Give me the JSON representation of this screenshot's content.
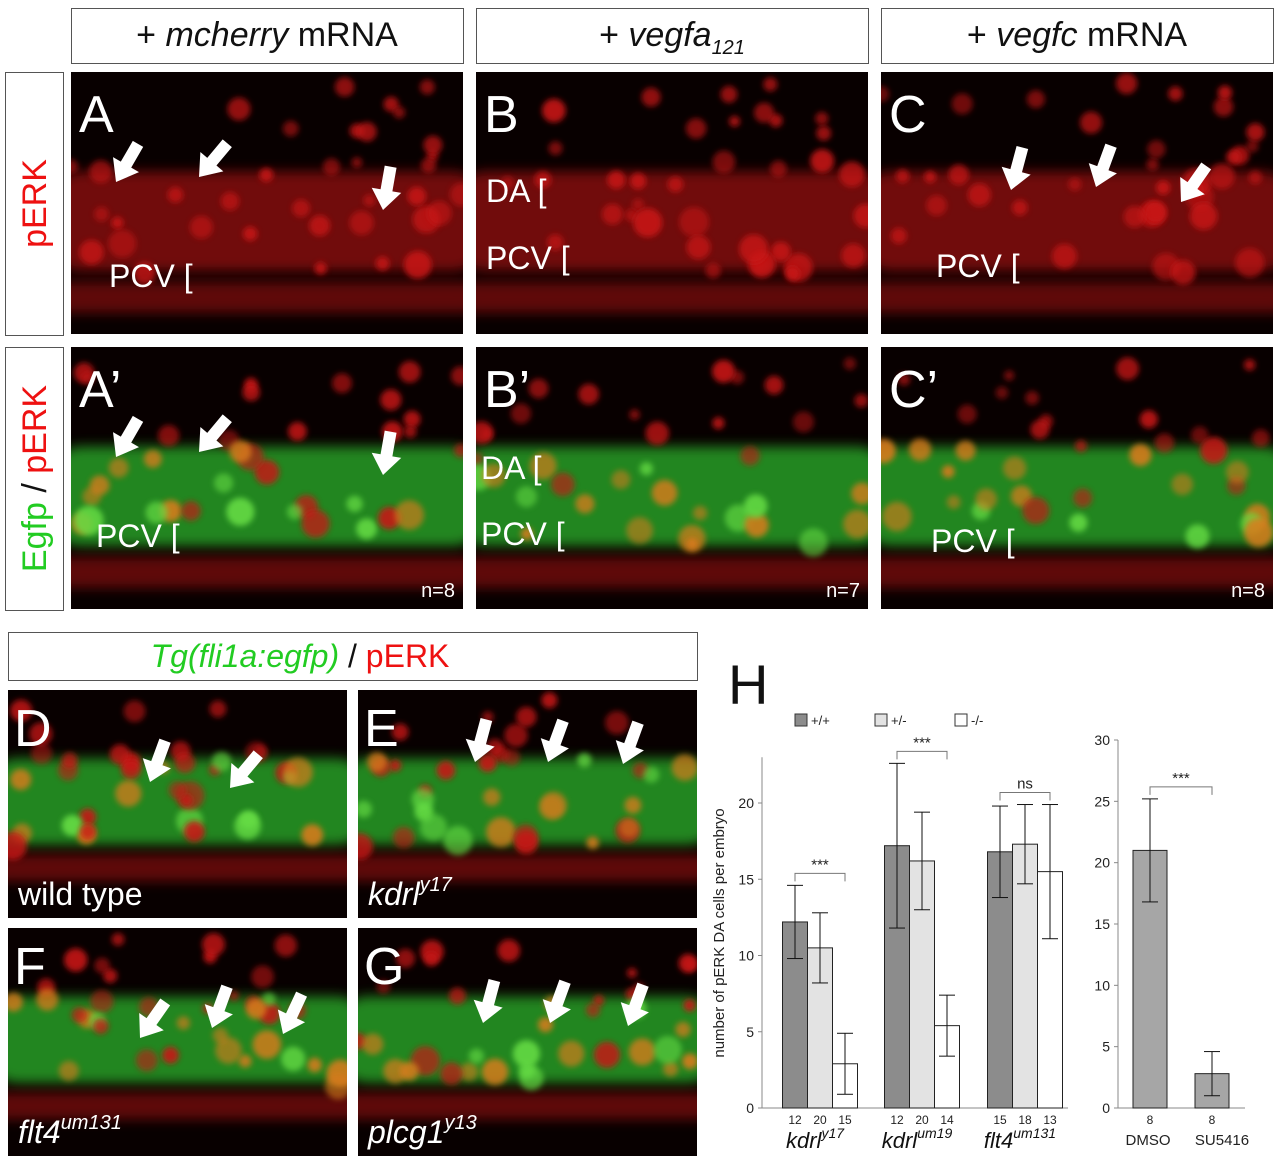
{
  "headers": [
    {
      "prefix": "+ ",
      "gene": "mcherry",
      "suffix": " mRNA"
    },
    {
      "prefix": "+ ",
      "gene": "vegfa",
      "sub": "121"
    },
    {
      "prefix": "+ ",
      "gene": "vegfc",
      "suffix": " mRNA"
    }
  ],
  "row_labels": [
    {
      "red": "pERK"
    },
    {
      "green": "Egfp",
      "sep": " / ",
      "red": "pERK"
    }
  ],
  "panels": [
    {
      "letter": "A",
      "labels": [
        "PCV ["
      ]
    },
    {
      "letter": "B",
      "labels": [
        "DA [",
        "PCV ["
      ]
    },
    {
      "letter": "C",
      "labels": [
        "PCV ["
      ]
    },
    {
      "letter": "A’",
      "labels": [
        "PCV ["
      ],
      "n": "n=8"
    },
    {
      "letter": "B’",
      "labels": [
        "DA [",
        "PCV ["
      ],
      "n": "n=7"
    },
    {
      "letter": "C’",
      "labels": [
        "PCV ["
      ],
      "n": "n=8"
    }
  ],
  "lower_header": {
    "green": "Tg(fli1a:egfp)",
    "sep": " / ",
    "red": "pERK"
  },
  "lower_panels": [
    {
      "letter": "D",
      "genotype": {
        "base": "wild type"
      }
    },
    {
      "letter": "E",
      "genotype": {
        "base": "kdrl",
        "sup": "y17"
      }
    },
    {
      "letter": "F",
      "genotype": {
        "base": "flt4",
        "sup": "um131"
      }
    },
    {
      "letter": "G",
      "genotype": {
        "base": "plcg1",
        "sup": "y13"
      }
    }
  ],
  "figure_label": "H",
  "chart_data": [
    {
      "type": "bar",
      "ylabel": "number of pERK DA cells per embryo",
      "categories": [
        {
          "base": "kdrl",
          "sup": "y17"
        },
        {
          "base": "kdrl",
          "sup": "um19"
        },
        {
          "base": "flt4",
          "sup": "um131"
        }
      ],
      "series": [
        {
          "name": "+/+",
          "color": "#8c8c8c",
          "values": [
            12.2,
            17.2,
            16.8
          ],
          "errors": [
            2.4,
            5.4,
            3.0
          ],
          "n": [
            12,
            12,
            15
          ]
        },
        {
          "name": "+/-",
          "color": "#e3e3e3",
          "values": [
            10.5,
            16.2,
            17.3
          ],
          "errors": [
            2.3,
            3.2,
            2.6
          ],
          "n": [
            20,
            20,
            18
          ]
        },
        {
          "name": "-/-",
          "color": "#ffffff",
          "values": [
            2.9,
            5.4,
            15.5
          ],
          "errors": [
            2.0,
            2.0,
            4.4
          ],
          "n": [
            15,
            14,
            13
          ]
        }
      ],
      "annotations": [
        "***",
        "***",
        "ns"
      ],
      "ylim": [
        0,
        23
      ],
      "yticks": [
        0,
        5,
        10,
        15,
        20
      ]
    },
    {
      "type": "bar",
      "categories": [
        "DMSO",
        "SU5416"
      ],
      "values": [
        21,
        2.8
      ],
      "errors": [
        4.2,
        1.8
      ],
      "n": [
        8,
        8
      ],
      "color": "#a6a6a6",
      "annotations": [
        "***"
      ],
      "ylim": [
        0,
        30
      ],
      "yticks": [
        0,
        5,
        10,
        15,
        20,
        25,
        30
      ]
    }
  ]
}
